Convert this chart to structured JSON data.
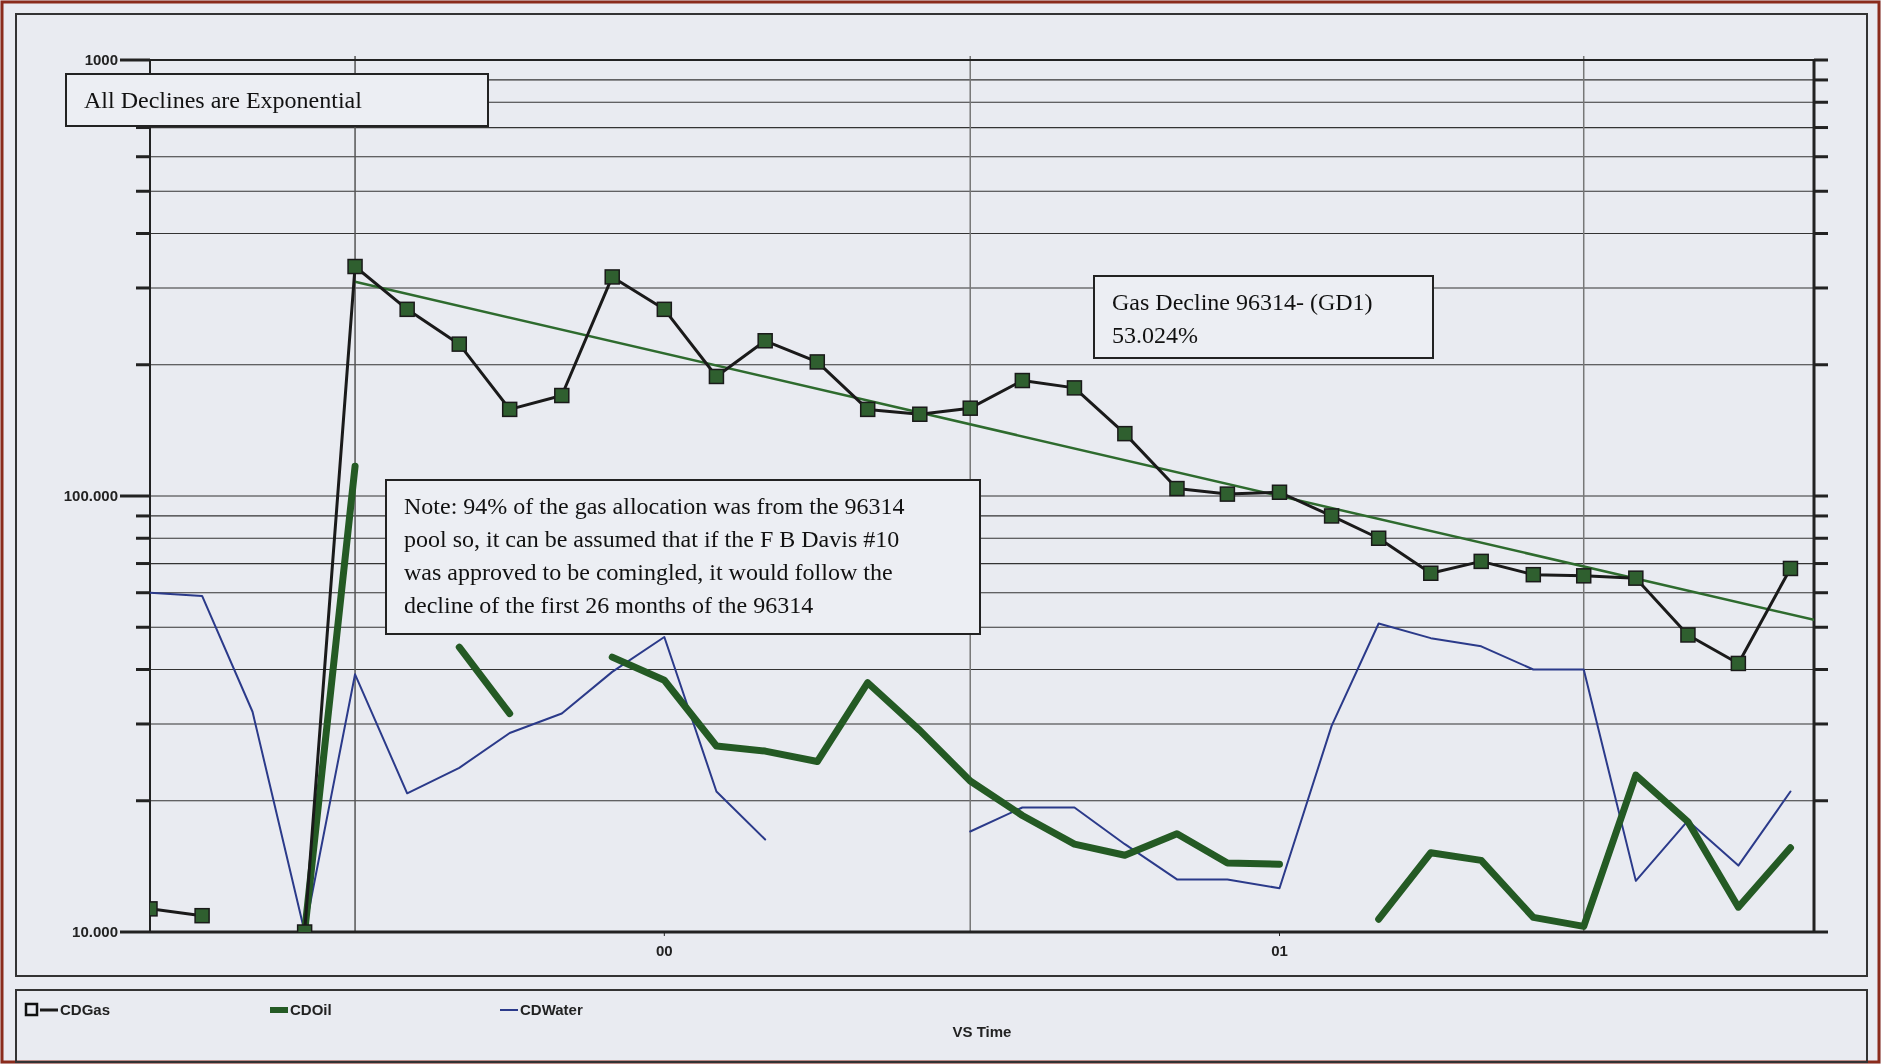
{
  "chart_data": {
    "type": "line",
    "xlabel": "VS Time",
    "x": [
      "1999-03",
      "1999-04",
      "1999-05",
      "1999-06",
      "1999-07",
      "1999-08",
      "1999-09",
      "1999-10",
      "1999-11",
      "1999-12",
      "2000-01",
      "2000-02",
      "2000-03",
      "2000-04",
      "2000-05",
      "2000-06",
      "2000-07",
      "2000-08",
      "2000-09",
      "2000-10",
      "2000-11",
      "2000-12",
      "2001-01",
      "2001-02",
      "2001-03",
      "2001-04",
      "2001-05",
      "2001-06",
      "2001-07",
      "2001-08",
      "2001-09",
      "2001-10",
      "2001-11"
    ],
    "series": [
      {
        "name": "CDGas",
        "color": "#1a1a1a",
        "marker": "square",
        "values": [
          11.3,
          10.9,
          null,
          10,
          336,
          268,
          223,
          158,
          170,
          318,
          268,
          188,
          227,
          203,
          158,
          154,
          159,
          184,
          177,
          139,
          104,
          101,
          102,
          90,
          80,
          66.5,
          70.8,
          66,
          65.6,
          64.8,
          48,
          41.3,
          68.2
        ]
      },
      {
        "name": "CDOil",
        "color": "#245a24",
        "marker": "none",
        "values": [
          null,
          null,
          null,
          10,
          117,
          null,
          45,
          31.7,
          null,
          42.7,
          37.8,
          26.7,
          26,
          24.6,
          37.3,
          29,
          22.2,
          18.5,
          15.9,
          15,
          16.8,
          14.4,
          14.3,
          null,
          10.7,
          15.2,
          14.6,
          10.8,
          10.3,
          22.9,
          17.9,
          11.4,
          15.6
        ]
      },
      {
        "name": "CDWater",
        "color": "#2b3a8a",
        "marker": "none",
        "values": [
          60,
          59,
          32,
          10,
          39,
          20.8,
          23.8,
          28.6,
          31.7,
          39.5,
          47.5,
          21,
          16.3,
          null,
          null,
          null,
          17,
          19.3,
          19.3,
          15.9,
          13.2,
          13.2,
          12.6,
          29.7,
          51,
          47.2,
          45.2,
          40,
          40,
          13.1,
          18,
          14.2,
          21
        ]
      },
      {
        "type": "line",
        "color": "#2e6b2e",
        "marker": "none",
        "x": [
          "1999-07",
          "2001-11-15"
        ],
        "values": [
          310,
          52
        ]
      }
    ],
    "log": "y",
    "xlim": [
      "1999-03",
      "2001-11-15"
    ],
    "xticks": [
      {
        "value": "2000-01",
        "label": "00"
      },
      {
        "value": "2001-01",
        "label": "01"
      }
    ],
    "ylim": [
      10,
      1000
    ],
    "yticks": [
      {
        "value": 10,
        "label": "10.000"
      },
      {
        "value": 20,
        "label": null
      },
      {
        "value": 30,
        "label": null
      },
      {
        "value": 40,
        "label": null
      },
      {
        "value": 50,
        "label": null
      },
      {
        "value": 60,
        "label": null
      },
      {
        "value": 70,
        "label": null
      },
      {
        "value": 80,
        "label": null
      },
      {
        "value": 90,
        "label": null
      },
      {
        "value": 100,
        "label": "100.000"
      },
      {
        "value": 200,
        "label": null
      },
      {
        "value": 300,
        "label": null
      },
      {
        "value": 400,
        "label": null
      },
      {
        "value": 500,
        "label": null
      },
      {
        "value": 600,
        "label": null
      },
      {
        "value": 700,
        "label": null
      },
      {
        "value": 800,
        "label": null
      },
      {
        "value": 900,
        "label": null
      },
      {
        "value": 1000,
        "label": "1000"
      }
    ],
    "grid": "y",
    "ref_lines": [
      {
        "axis": "x",
        "value": "1999-07",
        "color": "#555555"
      },
      {
        "axis": "x",
        "value": "2000-07",
        "color": "#777777"
      },
      {
        "axis": "x",
        "value": "2001-07",
        "color": "#777777"
      }
    ],
    "legend": "bottom left",
    "annotations": [
      "All Declines are Exponential",
      "Gas Decline 96314- (GD1)\n53.024%",
      "Note: 94% of the gas allocation was from the 96314\npool so, it can be assumed that if the F B Davis #10\nwas approved to be comingled, it would follow the\ndecline of the first 26 months of the 96314"
    ]
  }
}
